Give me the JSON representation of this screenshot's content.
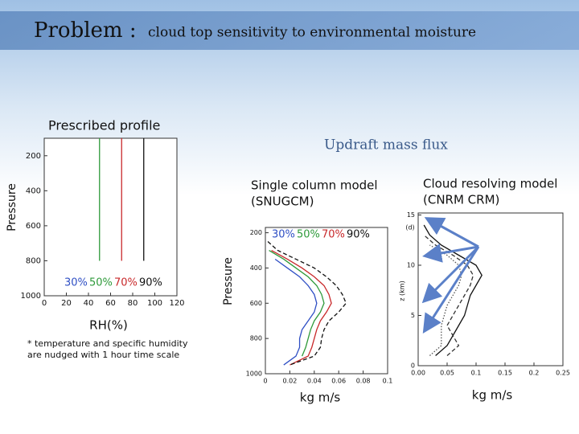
{
  "header": {
    "title": "Problem :",
    "subtitle": "cloud top sensitivity to environmental moisture"
  },
  "labels": {
    "prescribed": "Prescribed profile",
    "updraft": "Updraft mass flux",
    "scm": [
      "Single column model",
      "(SNUGCM)"
    ],
    "crm": [
      "Cloud resolving model",
      "(CNRM CRM)"
    ],
    "note": [
      "* temperature and specific humidity",
      "are nudged with 1 hour time scale"
    ]
  },
  "chart_data": [
    {
      "type": "line",
      "x_label": "RH(%)",
      "y_label": "Pressure",
      "xlim": [
        0,
        120
      ],
      "xticks": [
        0,
        20,
        40,
        60,
        80,
        100,
        120
      ],
      "ylim": [
        1000,
        100
      ],
      "yticks": [
        200,
        400,
        600,
        800,
        1000
      ],
      "y": [
        800,
        100
      ],
      "series": [
        {
          "name": "30%",
          "color": "#2f4fc4",
          "values": [
            null,
            null
          ]
        },
        {
          "name": "50%",
          "color": "#2e9a3a",
          "values": [
            50,
            50
          ]
        },
        {
          "name": "70%",
          "color": "#c8282a",
          "values": [
            70,
            70
          ]
        },
        {
          "name": "90%",
          "color": "#111111",
          "values": [
            90,
            90
          ]
        }
      ]
    },
    {
      "type": "line",
      "x_label": "kg m/s",
      "y_label": "Pressure",
      "xlim": [
        0,
        0.1
      ],
      "xticks": [
        0,
        0.02,
        0.04,
        0.06,
        0.08,
        0.1
      ],
      "ylim": [
        1000,
        170
      ],
      "yticks": [
        200,
        400,
        600,
        800,
        1000
      ],
      "y": [
        250,
        300,
        350,
        400,
        450,
        500,
        550,
        600,
        650,
        700,
        750,
        800,
        850,
        900,
        950
      ],
      "series": [
        {
          "name": "30%",
          "color": "#2f4fc4",
          "values": [
            null,
            null,
            0.008,
            0.018,
            0.028,
            0.035,
            0.04,
            0.042,
            0.04,
            0.035,
            0.03,
            0.028,
            0.028,
            0.025,
            0.015
          ]
        },
        {
          "name": "50%",
          "color": "#2e9a3a",
          "values": [
            null,
            0.003,
            0.015,
            0.025,
            0.035,
            0.042,
            0.046,
            0.048,
            0.045,
            0.04,
            0.037,
            0.035,
            0.033,
            0.03,
            null
          ]
        },
        {
          "name": "70%",
          "color": "#c8282a",
          "values": [
            null,
            0.005,
            0.018,
            0.03,
            0.04,
            0.048,
            0.052,
            0.054,
            0.05,
            0.045,
            0.042,
            0.04,
            0.038,
            0.035,
            0.02
          ]
        },
        {
          "name": "90%",
          "color": "#111111",
          "dashed": true,
          "values": [
            0.002,
            0.01,
            0.025,
            0.04,
            0.05,
            0.058,
            0.063,
            0.066,
            0.06,
            0.052,
            0.048,
            0.046,
            0.045,
            0.04,
            0.02
          ]
        }
      ]
    },
    {
      "type": "line",
      "x_label": "kg m/s",
      "y_label": "z (km)",
      "panel": "(d)",
      "xlim": [
        0,
        0.25
      ],
      "xticks": [
        {
          "value": 0,
          "label": "0.00"
        },
        0.05,
        0.1,
        0.15,
        0.2,
        0.25
      ],
      "ylim": [
        0,
        15.2
      ],
      "yticks": [
        0,
        5,
        10,
        15
      ],
      "y": [
        1,
        2,
        3,
        4,
        5,
        6,
        7,
        8,
        9,
        10,
        11,
        12,
        13,
        14
      ],
      "series": [
        {
          "color": "#111111",
          "values": [
            0.03,
            0.05,
            0.06,
            0.07,
            0.08,
            0.085,
            0.09,
            0.1,
            0.11,
            0.1,
            0.07,
            0.04,
            0.02,
            0.01
          ]
        },
        {
          "color": "#333333",
          "dashed": true,
          "values": [
            0.05,
            0.07,
            0.06,
            0.05,
            0.06,
            0.07,
            0.08,
            0.09,
            0.095,
            0.085,
            0.06,
            0.03,
            0.01,
            null
          ]
        },
        {
          "color": "#555555",
          "dotted": true,
          "values": [
            0.02,
            0.04,
            0.04,
            0.04,
            0.045,
            0.05,
            0.06,
            0.07,
            0.075,
            0.07,
            0.05,
            0.02,
            null,
            null
          ]
        }
      ]
    }
  ]
}
